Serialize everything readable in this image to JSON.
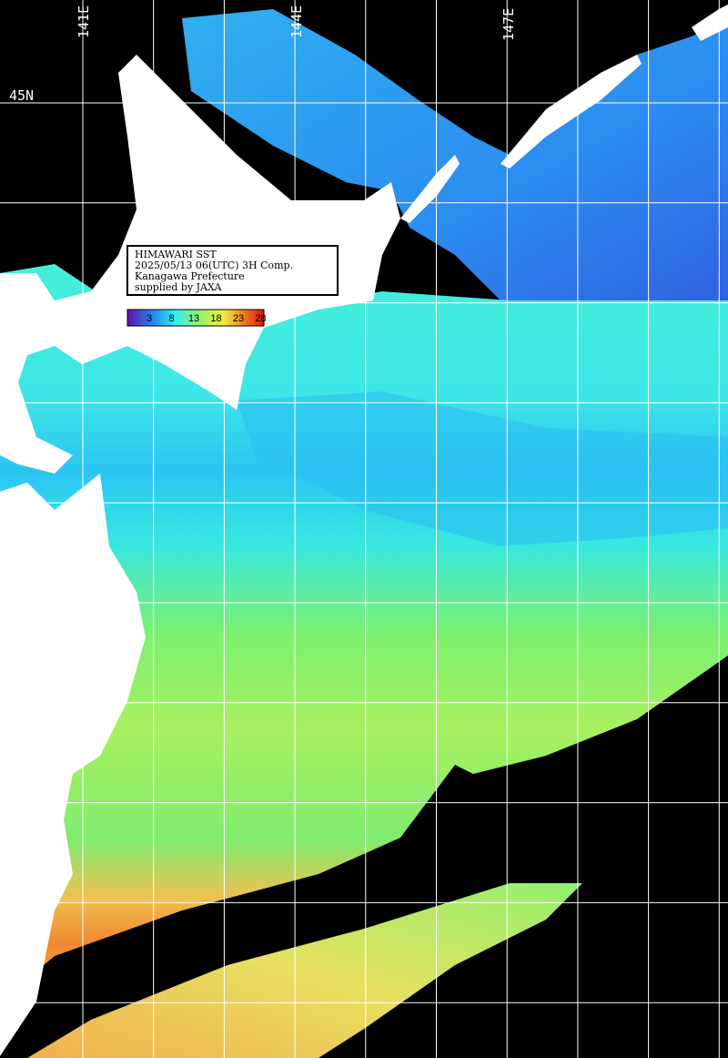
{
  "map": {
    "grid_labels": {
      "lon": [
        "141E",
        "144E",
        "147E"
      ],
      "lat": [
        "45N"
      ]
    },
    "info": [
      "HIMAWARI SST",
      "2025/05/13 06(UTC) 3H Comp.",
      "Kanagawa Prefecture",
      "supplied by JAXA"
    ],
    "colorbar": {
      "ticks": [
        3,
        8,
        13,
        18,
        23,
        28
      ]
    }
  }
}
